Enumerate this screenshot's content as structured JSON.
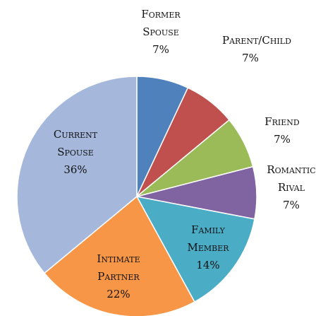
{
  "chart_data": {
    "type": "pie",
    "categories": [
      "Former Spouse",
      "Parent/Child",
      "Friend",
      "Romantic Rival",
      "Family Member",
      "Intimate Partner",
      "Current Spouse"
    ],
    "values": [
      7,
      7,
      7,
      7,
      14,
      22,
      36
    ],
    "value_labels": [
      "7%",
      "7%",
      "7%",
      "7%",
      "14%",
      "22%",
      "36%"
    ],
    "colors": [
      "#4f81bd",
      "#c0504d",
      "#9bbb59",
      "#8064a2",
      "#4bacc6",
      "#f79646",
      "#a5b8dc"
    ]
  }
}
